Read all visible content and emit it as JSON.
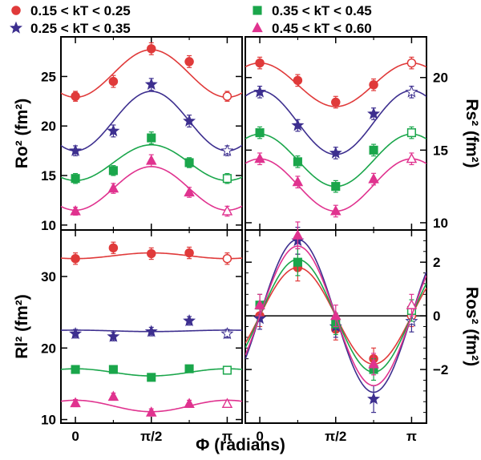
{
  "colors": {
    "red": "#e03a3a",
    "blue": "#3d2f8f",
    "green": "#1aa64b",
    "magenta": "#e0338f",
    "axis": "#000000"
  },
  "legend": [
    {
      "label": "0.15 < kT < 0.25",
      "marker": "circle",
      "color_key": "red"
    },
    {
      "label": "0.35 < kT < 0.45",
      "marker": "square",
      "color_key": "green"
    },
    {
      "label": "0.25 < kT < 0.35",
      "marker": "star",
      "color_key": "blue"
    },
    {
      "label": "0.45 < kT < 0.60",
      "marker": "triangle",
      "color_key": "magenta"
    }
  ],
  "xlabel": "Φ (radians)",
  "x_tick_labels": [
    "0",
    "π/2",
    "π"
  ],
  "chart_data": [
    {
      "type": "scatter",
      "panel": "top-left",
      "ylabel": "Ro² (fm²)",
      "xlim": [
        -0.3,
        3.45
      ],
      "ylim": [
        9.5,
        29
      ],
      "yticks": [
        10,
        15,
        20,
        25
      ],
      "y_axis_side": "left",
      "x": [
        0,
        0.785,
        1.571,
        2.356,
        3.1416
      ],
      "series": [
        {
          "color_key": "red",
          "marker": "circle",
          "values": [
            23.0,
            24.5,
            27.8,
            26.5,
            23.0
          ],
          "errors": [
            0.5,
            0.6,
            0.6,
            0.6,
            0.5
          ],
          "open_last": true,
          "fit": {
            "a": 25.3,
            "b": -2.4,
            "c": 0
          }
        },
        {
          "color_key": "blue",
          "marker": "star",
          "values": [
            17.5,
            19.5,
            24.2,
            20.5,
            17.5
          ],
          "errors": [
            0.5,
            0.6,
            0.6,
            0.6,
            0.5
          ],
          "open_last": true,
          "fit": {
            "a": 20.5,
            "b": -3.0,
            "c": 0
          }
        },
        {
          "color_key": "green",
          "marker": "square",
          "values": [
            14.7,
            15.5,
            18.8,
            16.3,
            14.7
          ],
          "errors": [
            0.5,
            0.5,
            0.6,
            0.5,
            0.5
          ],
          "open_last": true,
          "fit": {
            "a": 16.3,
            "b": -1.8,
            "c": 0
          }
        },
        {
          "color_key": "magenta",
          "marker": "triangle",
          "values": [
            11.4,
            13.7,
            16.5,
            13.3,
            11.4
          ],
          "errors": [
            0.4,
            0.5,
            0.6,
            0.5,
            0.5
          ],
          "open_last": true,
          "fit": {
            "a": 13.7,
            "b": -2.2,
            "c": 0
          }
        }
      ]
    },
    {
      "type": "scatter",
      "panel": "top-right",
      "ylabel": "Rs² (fm²)",
      "xlim": [
        -0.3,
        3.45
      ],
      "ylim": [
        9.5,
        22.8
      ],
      "yticks": [
        10,
        15,
        20
      ],
      "y_axis_side": "right",
      "x": [
        0,
        0.785,
        1.571,
        2.356,
        3.1416
      ],
      "series": [
        {
          "color_key": "red",
          "marker": "circle",
          "values": [
            21.0,
            19.8,
            18.3,
            19.5,
            21.0
          ],
          "errors": [
            0.4,
            0.4,
            0.4,
            0.4,
            0.4
          ],
          "open_last": true,
          "fit": {
            "a": 19.5,
            "b": 1.5,
            "c": 0
          }
        },
        {
          "color_key": "blue",
          "marker": "star",
          "values": [
            19.0,
            16.7,
            14.8,
            17.5,
            19.0
          ],
          "errors": [
            0.4,
            0.4,
            0.4,
            0.4,
            0.4
          ],
          "open_last": true,
          "fit": {
            "a": 16.9,
            "b": 2.2,
            "c": 0
          }
        },
        {
          "color_key": "green",
          "marker": "square",
          "values": [
            16.2,
            14.2,
            12.5,
            15.0,
            16.2
          ],
          "errors": [
            0.4,
            0.4,
            0.4,
            0.4,
            0.4
          ],
          "open_last": true,
          "fit": {
            "a": 14.3,
            "b": 1.8,
            "c": 0
          }
        },
        {
          "color_key": "magenta",
          "marker": "triangle",
          "values": [
            14.4,
            12.8,
            10.8,
            13.0,
            14.4
          ],
          "errors": [
            0.4,
            0.4,
            0.4,
            0.4,
            0.4
          ],
          "open_last": true,
          "fit": {
            "a": 12.6,
            "b": 1.8,
            "c": 0
          }
        }
      ]
    },
    {
      "type": "scatter",
      "panel": "bottom-left",
      "ylabel": "Rl² (fm²)",
      "xlim": [
        -0.3,
        3.45
      ],
      "ylim": [
        9.5,
        36.5
      ],
      "yticks": [
        10,
        20,
        30
      ],
      "y_axis_side": "left",
      "x": [
        0,
        0.785,
        1.571,
        2.356,
        3.1416
      ],
      "series": [
        {
          "color_key": "red",
          "marker": "circle",
          "values": [
            32.5,
            34.0,
            33.2,
            33.3,
            32.5
          ],
          "errors": [
            0.8,
            0.8,
            0.8,
            0.8,
            0.8
          ],
          "open_last": true,
          "fit": {
            "a": 32.9,
            "b": -0.4,
            "c": 0
          }
        },
        {
          "color_key": "blue",
          "marker": "star",
          "values": [
            22.0,
            21.6,
            22.3,
            23.8,
            22.0
          ],
          "errors": [
            0.6,
            0.6,
            0.6,
            0.6,
            0.6
          ],
          "open_last": true,
          "fit": {
            "a": 22.4,
            "b": 0.1,
            "c": 0
          }
        },
        {
          "color_key": "green",
          "marker": "square",
          "values": [
            17.0,
            17.0,
            15.9,
            17.1,
            16.9
          ],
          "errors": [
            0.5,
            0.5,
            0.5,
            0.5,
            0.5
          ],
          "open_last": true,
          "fit": {
            "a": 16.6,
            "b": 0.5,
            "c": 0
          }
        },
        {
          "color_key": "magenta",
          "marker": "triangle",
          "values": [
            12.3,
            13.2,
            11.0,
            12.2,
            12.2
          ],
          "errors": [
            0.5,
            0.5,
            0.5,
            0.5,
            0.5
          ],
          "open_last": true,
          "fit": {
            "a": 11.9,
            "b": 0.8,
            "c": 0
          }
        }
      ]
    },
    {
      "type": "scatter",
      "panel": "bottom-right",
      "ylabel": "Ros² (fm²)",
      "xlim": [
        -0.3,
        3.45
      ],
      "ylim": [
        -4.0,
        3.2
      ],
      "yticks": [
        -2,
        0,
        2
      ],
      "y_axis_side": "right",
      "zero_line": true,
      "x": [
        0,
        0.785,
        1.571,
        2.356,
        3.1416
      ],
      "series": [
        {
          "color_key": "red",
          "marker": "circle",
          "values": [
            0.0,
            1.8,
            -0.5,
            -1.6,
            0.0
          ],
          "errors": [
            0.4,
            0.5,
            0.4,
            0.4,
            0.4
          ],
          "open_last": true,
          "fit": {
            "a": 0,
            "b": 0,
            "c": 1.8
          }
        },
        {
          "color_key": "blue",
          "marker": "star",
          "values": [
            -0.1,
            2.8,
            -0.4,
            -3.1,
            -0.2
          ],
          "errors": [
            0.4,
            0.5,
            0.4,
            0.5,
            0.4
          ],
          "open_last": true,
          "fit": {
            "a": 0,
            "b": 0,
            "c": 2.85
          }
        },
        {
          "color_key": "green",
          "marker": "square",
          "values": [
            0.4,
            2.0,
            -0.3,
            -2.0,
            0.2
          ],
          "errors": [
            0.4,
            0.5,
            0.4,
            0.4,
            0.4
          ],
          "open_last": true,
          "fit": {
            "a": 0,
            "b": 0,
            "c": 2.1
          }
        },
        {
          "color_key": "magenta",
          "marker": "triangle",
          "values": [
            0.4,
            3.0,
            0.0,
            -1.8,
            0.4
          ],
          "errors": [
            0.4,
            0.5,
            0.4,
            0.4,
            0.4
          ],
          "open_last": true,
          "fit": {
            "a": 0,
            "b": 0,
            "c": 2.6
          }
        }
      ]
    }
  ]
}
